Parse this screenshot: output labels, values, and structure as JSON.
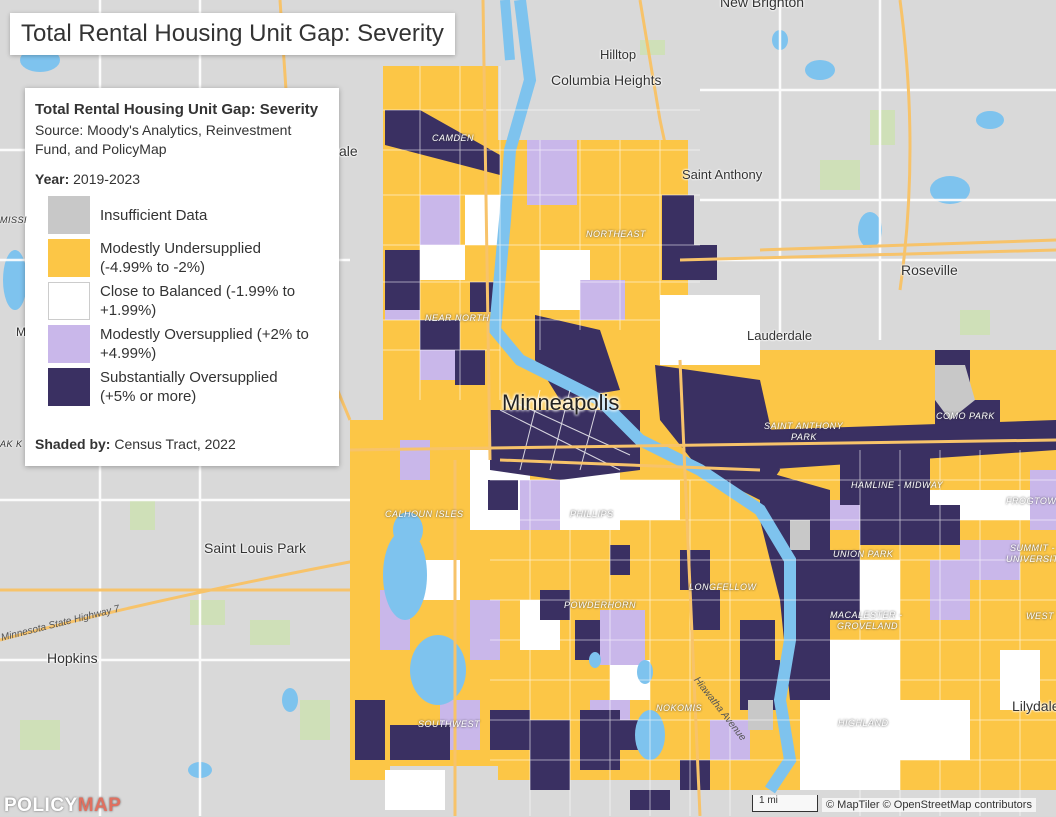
{
  "title": "Total Rental Housing Unit Gap: Severity",
  "legend": {
    "title": "Total Rental Housing Unit Gap: Severity",
    "source": "Source: Moody's Analytics, Reinvestment Fund, and PolicyMap",
    "year_label": "Year:",
    "year_value": "2019-2023",
    "items": [
      {
        "label": "Insufficient Data",
        "color": "#c8c8c8"
      },
      {
        "label": "Modestly Undersupplied (-4.99% to -2%)",
        "color": "#fcc646"
      },
      {
        "label": "Close to Balanced (-1.99% to +1.99%)",
        "color": "#ffffff"
      },
      {
        "label": "Modestly Oversupplied (+2% to +4.99%)",
        "color": "#c9b7ea"
      },
      {
        "label": "Substantially Oversupplied (+5% or more)",
        "color": "#3a3062"
      }
    ],
    "shaded_label": "Shaded by:",
    "shaded_value": "Census Tract, 2022"
  },
  "map": {
    "city": "Minneapolis",
    "places": {
      "new_brighton": "New Brighton",
      "hilltop": "Hilltop",
      "columbia_heights": "Columbia Heights",
      "saint_anthony": "Saint Anthony",
      "roseville": "Roseville",
      "lauderdale": "Lauderdale",
      "saint_louis_park": "Saint Louis Park",
      "hopkins": "Hopkins",
      "lilydale": "Lilydale"
    },
    "neighborhoods": {
      "camden": "CAMDEN",
      "northeast": "NORTHEAST",
      "near_north": "NEAR NORTH",
      "calhoun_isles": "CALHOUN ISLES",
      "phillips": "PHILLIPS",
      "powderhorn": "POWDERHORN",
      "longfellow": "LONGFELLOW",
      "nokomis": "NOKOMIS",
      "southwest": "SOUTHWEST",
      "st_anthony_park_1": "SAINT ANTHONY",
      "st_anthony_park_2": "PARK",
      "como_park": "COMO PARK",
      "hamline_midway": "HAMLINE - MIDWAY",
      "frogtown": "FROGTOWN",
      "union_park": "UNION PARK",
      "macalester_1": "MACALESTER -",
      "macalester_2": "GROVELAND",
      "highland": "HIGHLAND",
      "summit_1": "SUMMIT -",
      "summit_2": "UNIVERSITY",
      "west": "WEST"
    },
    "edge_labels": {
      "dale": "ale",
      "missi": "MISSI",
      "m": "M",
      "ak_k": "AK K"
    },
    "roads": {
      "hwy7": "Minnesota State Highway 7",
      "hiawatha": "Hiawatha Avenue"
    },
    "brand": "POLICYMAP",
    "scale": "1 mi",
    "attribution": "© MapTiler © OpenStreetMap contributors"
  }
}
